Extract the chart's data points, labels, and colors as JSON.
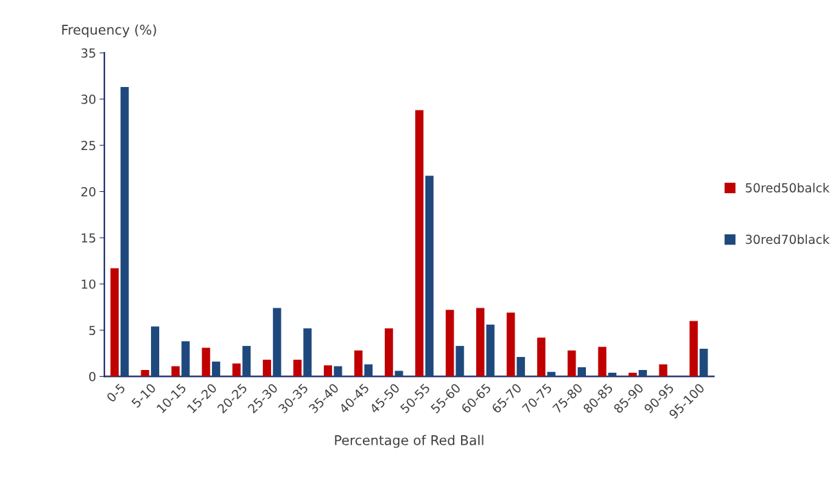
{
  "chart_data": {
    "type": "bar",
    "ylabel": "Frequency (%)",
    "xlabel": "Percentage of Red Ball",
    "categories": [
      "0-5",
      "5-10",
      "10-15",
      "15-20",
      "20-25",
      "25-30",
      "30-35",
      "35-40",
      "40-45",
      "45-50",
      "50-55",
      "55-60",
      "60-65",
      "65-70",
      "70-75",
      "75-80",
      "80-85",
      "85-90",
      "90-95",
      "95-100"
    ],
    "series": [
      {
        "name": "50red50balck",
        "color": "#c00000",
        "values": [
          11.7,
          0.7,
          1.1,
          3.1,
          1.4,
          1.8,
          1.8,
          1.2,
          2.8,
          5.2,
          28.8,
          7.2,
          7.4,
          6.9,
          4.2,
          2.8,
          3.2,
          0.4,
          1.3,
          6.0
        ]
      },
      {
        "name": "30red70black",
        "color": "#1f497d",
        "values": [
          31.3,
          5.4,
          3.8,
          1.6,
          3.3,
          7.4,
          5.2,
          1.1,
          1.3,
          0.6,
          21.7,
          3.3,
          5.6,
          2.1,
          0.5,
          1.0,
          0.4,
          0.7,
          null,
          3.0
        ]
      }
    ],
    "ylim": [
      0,
      35
    ],
    "yticks": [
      0,
      5,
      10,
      15,
      20,
      25,
      30,
      35
    ],
    "grid": false,
    "legend": "right"
  }
}
